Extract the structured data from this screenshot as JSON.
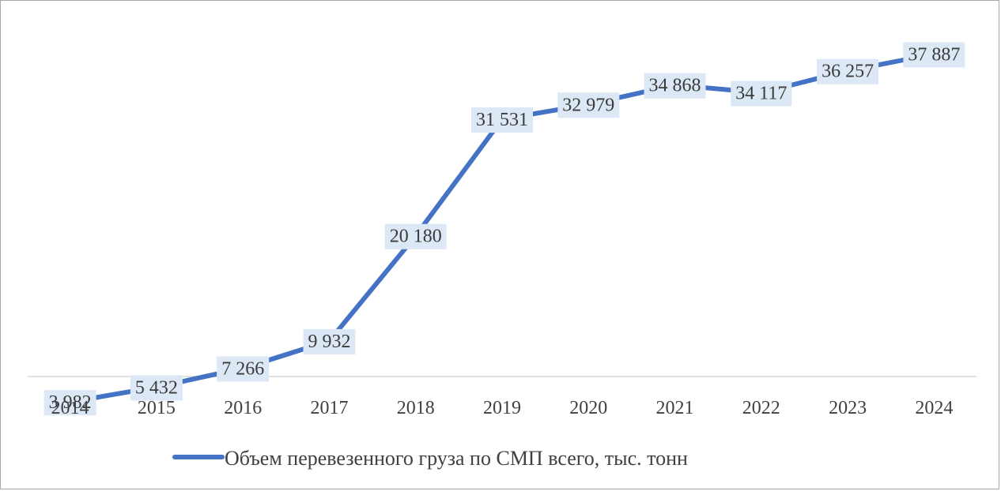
{
  "chart_data": {
    "type": "line",
    "title": "",
    "xlabel": "",
    "ylabel": "",
    "categories": [
      "2014",
      "2015",
      "2016",
      "2017",
      "2018",
      "2019",
      "2020",
      "2021",
      "2022",
      "2023",
      "2024"
    ],
    "series": [
      {
        "name": "Объем перевезенного груза по СМП всего, тыс. тонн",
        "values": [
          3982,
          5432,
          7266,
          9932,
          20180,
          31531,
          32979,
          34868,
          34117,
          36257,
          37887
        ],
        "labels": [
          "3 982",
          "5 432",
          "7 266",
          "9 932",
          "20 180",
          "31 531",
          "32 979",
          "34 868",
          "34 117",
          "36 257",
          "37 887"
        ],
        "color": "#4472c4"
      }
    ],
    "ylim": [
      0,
      40000
    ],
    "grid": false,
    "legend": "bottom",
    "data_label_background": "#dce8f5"
  }
}
